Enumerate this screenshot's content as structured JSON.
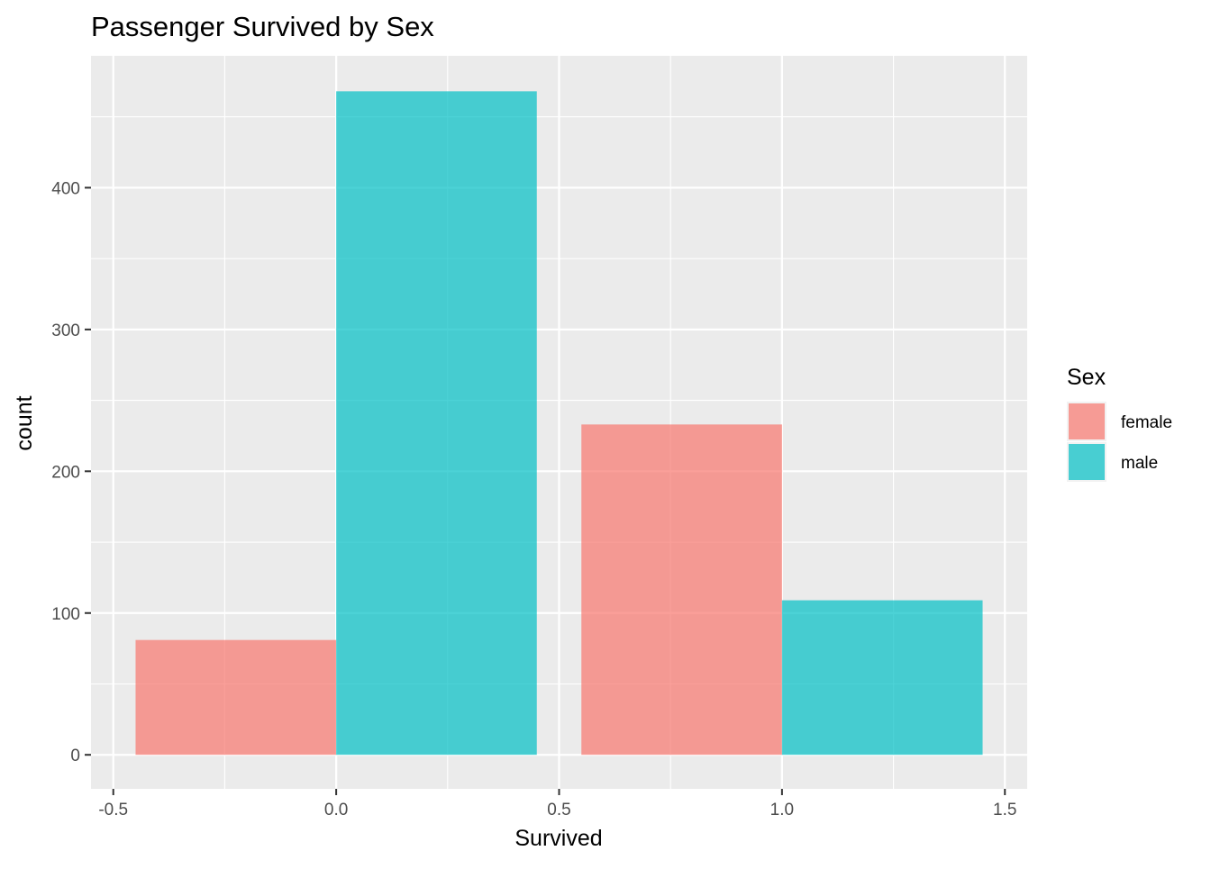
{
  "chart_data": {
    "type": "bar",
    "title": "Passenger Survived by Sex",
    "xlabel": "Survived",
    "ylabel": "count",
    "x": [
      0,
      1
    ],
    "xlim": [
      -0.55,
      1.55
    ],
    "ylim": [
      -24,
      493
    ],
    "xticks": [
      -0.5,
      0.0,
      0.5,
      1.0,
      1.5
    ],
    "xtick_labels": [
      "-0.5",
      "0.0",
      "0.5",
      "1.0",
      "1.5"
    ],
    "yticks": [
      0,
      100,
      200,
      300,
      400
    ],
    "ytick_labels": [
      "0",
      "100",
      "200",
      "300",
      "400"
    ],
    "grid": true,
    "legend": {
      "title": "Sex",
      "placement": "right"
    },
    "series": [
      {
        "name": "female",
        "color": "#F8766D",
        "values": [
          81,
          233
        ]
      },
      {
        "name": "male",
        "color": "#00BFC4",
        "values": [
          468,
          109
        ]
      }
    ]
  }
}
